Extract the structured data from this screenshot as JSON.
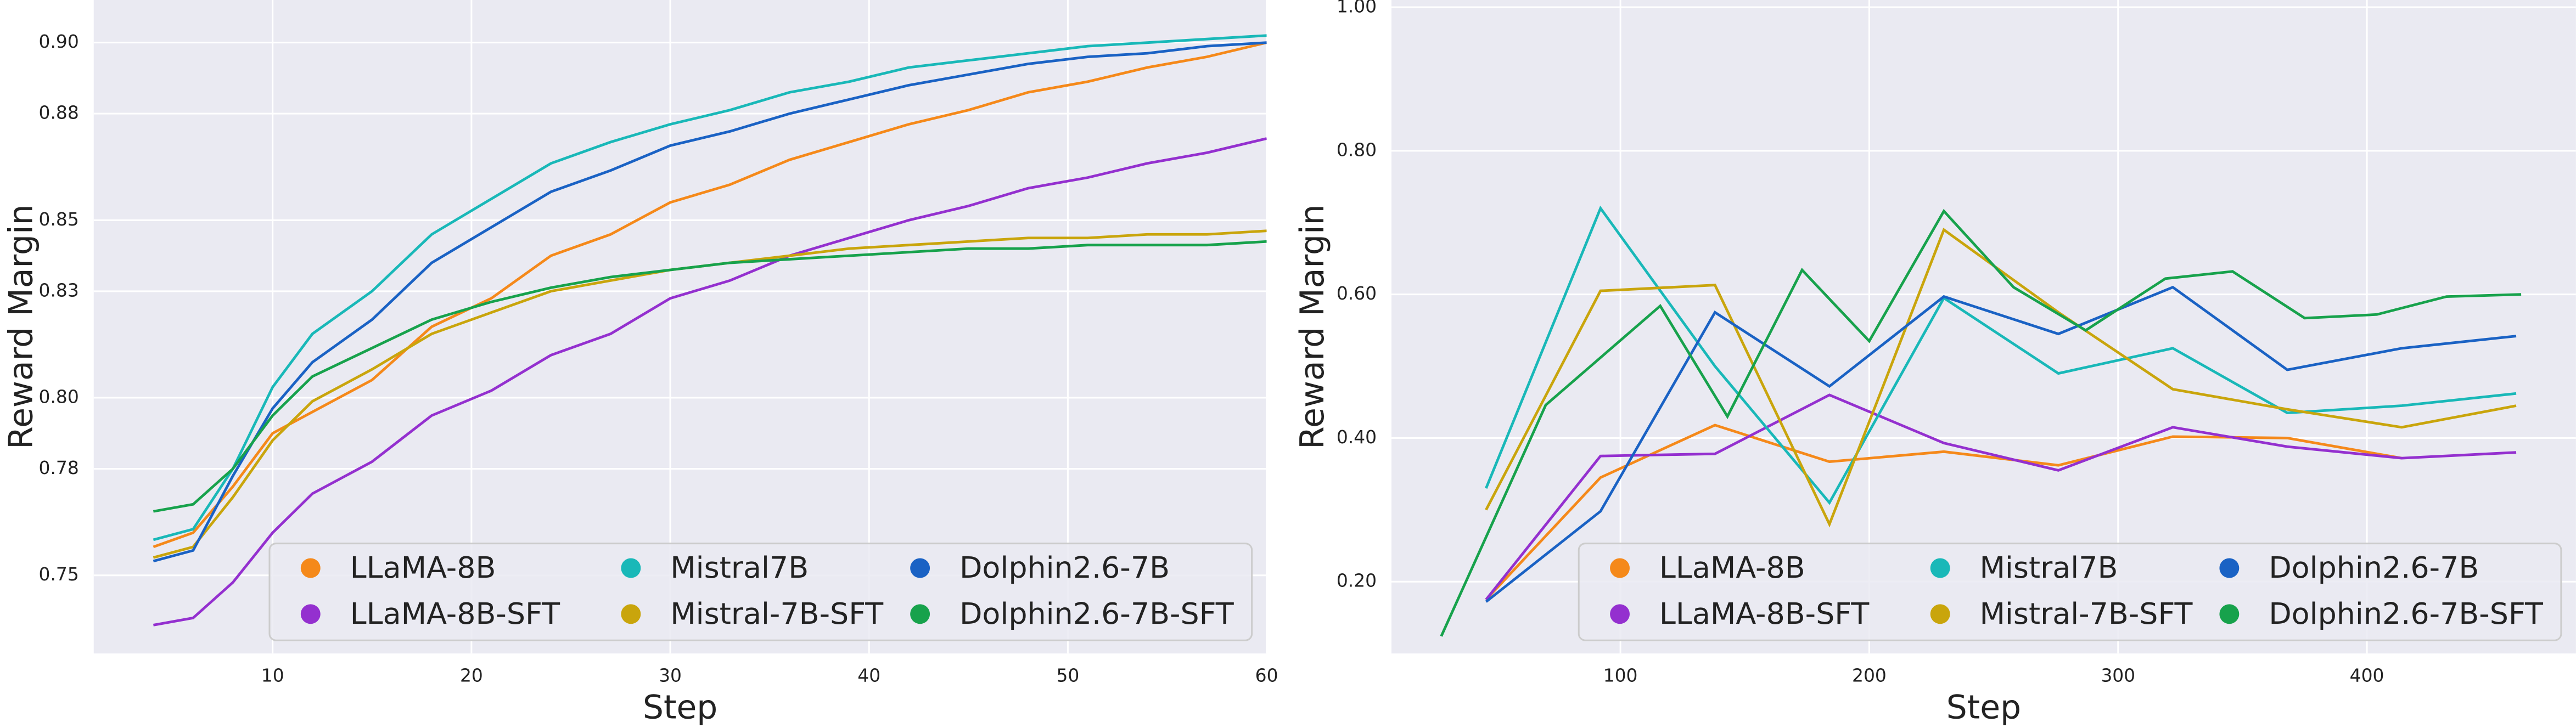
{
  "chart_data": [
    {
      "type": "line",
      "x_label": "Step",
      "y_label": "Reward Margin",
      "x": [
        4,
        6,
        8,
        10,
        12,
        15,
        18,
        21,
        24,
        27,
        30,
        33,
        36,
        39,
        42,
        45,
        48,
        51,
        54,
        57,
        60
      ],
      "series": [
        {
          "name": "LLaMA-8B",
          "color": "#f5891a",
          "values": [
            0.758,
            0.762,
            0.775,
            0.79,
            0.796,
            0.805,
            0.82,
            0.828,
            0.84,
            0.846,
            0.855,
            0.86,
            0.867,
            0.872,
            0.877,
            0.881,
            0.886,
            0.889,
            0.893,
            0.896,
            0.9
          ]
        },
        {
          "name": "LLaMA-8B-SFT",
          "color": "#9430cf",
          "values": [
            0.736,
            0.738,
            0.748,
            0.762,
            0.773,
            0.782,
            0.795,
            0.802,
            0.812,
            0.818,
            0.828,
            0.833,
            0.84,
            0.845,
            0.85,
            0.854,
            0.859,
            0.862,
            0.866,
            0.869,
            0.873
          ]
        },
        {
          "name": "Mistral7B",
          "color": "#19b8b8",
          "values": [
            0.76,
            0.763,
            0.78,
            0.803,
            0.818,
            0.83,
            0.846,
            0.856,
            0.866,
            0.872,
            0.877,
            0.881,
            0.886,
            0.889,
            0.893,
            0.895,
            0.897,
            0.899,
            0.9,
            0.901,
            0.902
          ]
        },
        {
          "name": "Mistral-7B-SFT",
          "color": "#c9a50c",
          "values": [
            0.755,
            0.758,
            0.772,
            0.788,
            0.799,
            0.808,
            0.818,
            0.824,
            0.83,
            0.833,
            0.836,
            0.838,
            0.84,
            0.842,
            0.843,
            0.844,
            0.845,
            0.845,
            0.846,
            0.846,
            0.847
          ]
        },
        {
          "name": "Dolphin2.6-7B",
          "color": "#1a62c4",
          "values": [
            0.754,
            0.757,
            0.778,
            0.797,
            0.81,
            0.822,
            0.838,
            0.848,
            0.858,
            0.864,
            0.871,
            0.875,
            0.88,
            0.884,
            0.888,
            0.891,
            0.894,
            0.896,
            0.897,
            0.899,
            0.9
          ]
        },
        {
          "name": "Dolphin2.6-7B-SFT",
          "color": "#17a24c",
          "values": [
            0.768,
            0.77,
            0.78,
            0.795,
            0.806,
            0.814,
            0.822,
            0.827,
            0.831,
            0.834,
            0.836,
            0.838,
            0.839,
            0.84,
            0.841,
            0.842,
            0.842,
            0.843,
            0.843,
            0.843,
            0.844
          ]
        }
      ],
      "xlim": [
        1,
        60
      ],
      "ylim": [
        0.728,
        0.912
      ],
      "xticks": [
        10,
        20,
        30,
        40,
        50,
        60
      ],
      "yticks": [
        0.75,
        0.78,
        {
          "value": 0.8,
          "label": "0.80"
        },
        0.83,
        0.85,
        0.88,
        {
          "value": 0.9,
          "label": "0.90"
        }
      ],
      "grid": true,
      "legend": "lower center"
    },
    {
      "type": "line",
      "x_label": "Step",
      "y_label": "Reward Margin",
      "series": [
        {
          "name": "LLaMA-8B",
          "color": "#f5891a",
          "x": [
            46,
            92,
            138,
            184,
            230,
            276,
            322,
            368,
            414
          ],
          "values": [
            0.175,
            0.345,
            0.418,
            0.367,
            0.381,
            0.362,
            0.402,
            0.4,
            0.372
          ]
        },
        {
          "name": "LLaMA-8B-SFT",
          "color": "#9430cf",
          "x": [
            46,
            92,
            138,
            184,
            230,
            276,
            322,
            368,
            414,
            460
          ],
          "values": [
            0.175,
            0.375,
            0.378,
            0.46,
            0.393,
            0.355,
            0.415,
            0.388,
            0.372,
            0.38
          ]
        },
        {
          "name": "Mistral7B",
          "color": "#19b8b8",
          "x": [
            46,
            92,
            138,
            184,
            230,
            276,
            322,
            368,
            414,
            460
          ],
          "values": [
            0.33,
            0.72,
            0.5,
            0.31,
            0.595,
            0.49,
            0.525,
            0.435,
            0.445,
            0.462
          ]
        },
        {
          "name": "Mistral-7B-SFT",
          "color": "#c9a50c",
          "x": [
            46,
            92,
            138,
            184,
            230,
            276,
            322,
            368,
            414,
            460
          ],
          "values": [
            0.3,
            0.605,
            0.613,
            0.28,
            0.69,
            0.575,
            0.468,
            0.44,
            0.415,
            0.445
          ]
        },
        {
          "name": "Dolphin2.6-7B",
          "color": "#1a62c4",
          "x": [
            46,
            92,
            138,
            184,
            230,
            276,
            322,
            368,
            414,
            460
          ],
          "values": [
            0.172,
            0.298,
            0.575,
            0.472,
            0.597,
            0.545,
            0.61,
            0.495,
            0.525,
            0.542
          ]
        },
        {
          "name": "Dolphin2.6-7B-SFT",
          "color": "#17a24c",
          "x": [
            28,
            70,
            116,
            143,
            173,
            200,
            230,
            258,
            287,
            319,
            346,
            375,
            404,
            432,
            462
          ],
          "values": [
            0.124,
            0.446,
            0.584,
            0.43,
            0.634,
            0.535,
            0.716,
            0.61,
            0.55,
            0.622,
            0.632,
            0.567,
            0.572,
            0.597,
            0.6
          ]
        }
      ],
      "xlim": [
        8,
        484
      ],
      "ylim": [
        0.1,
        1.01
      ],
      "xticks": [
        100,
        200,
        300,
        400
      ],
      "yticks": [
        {
          "value": 0.2,
          "label": "0.20"
        },
        {
          "value": 0.4,
          "label": "0.40"
        },
        {
          "value": 0.6,
          "label": "0.60"
        },
        {
          "value": 0.8,
          "label": "0.80"
        },
        {
          "value": 1,
          "label": "1.00"
        }
      ],
      "grid": true,
      "legend": "lower center"
    }
  ]
}
